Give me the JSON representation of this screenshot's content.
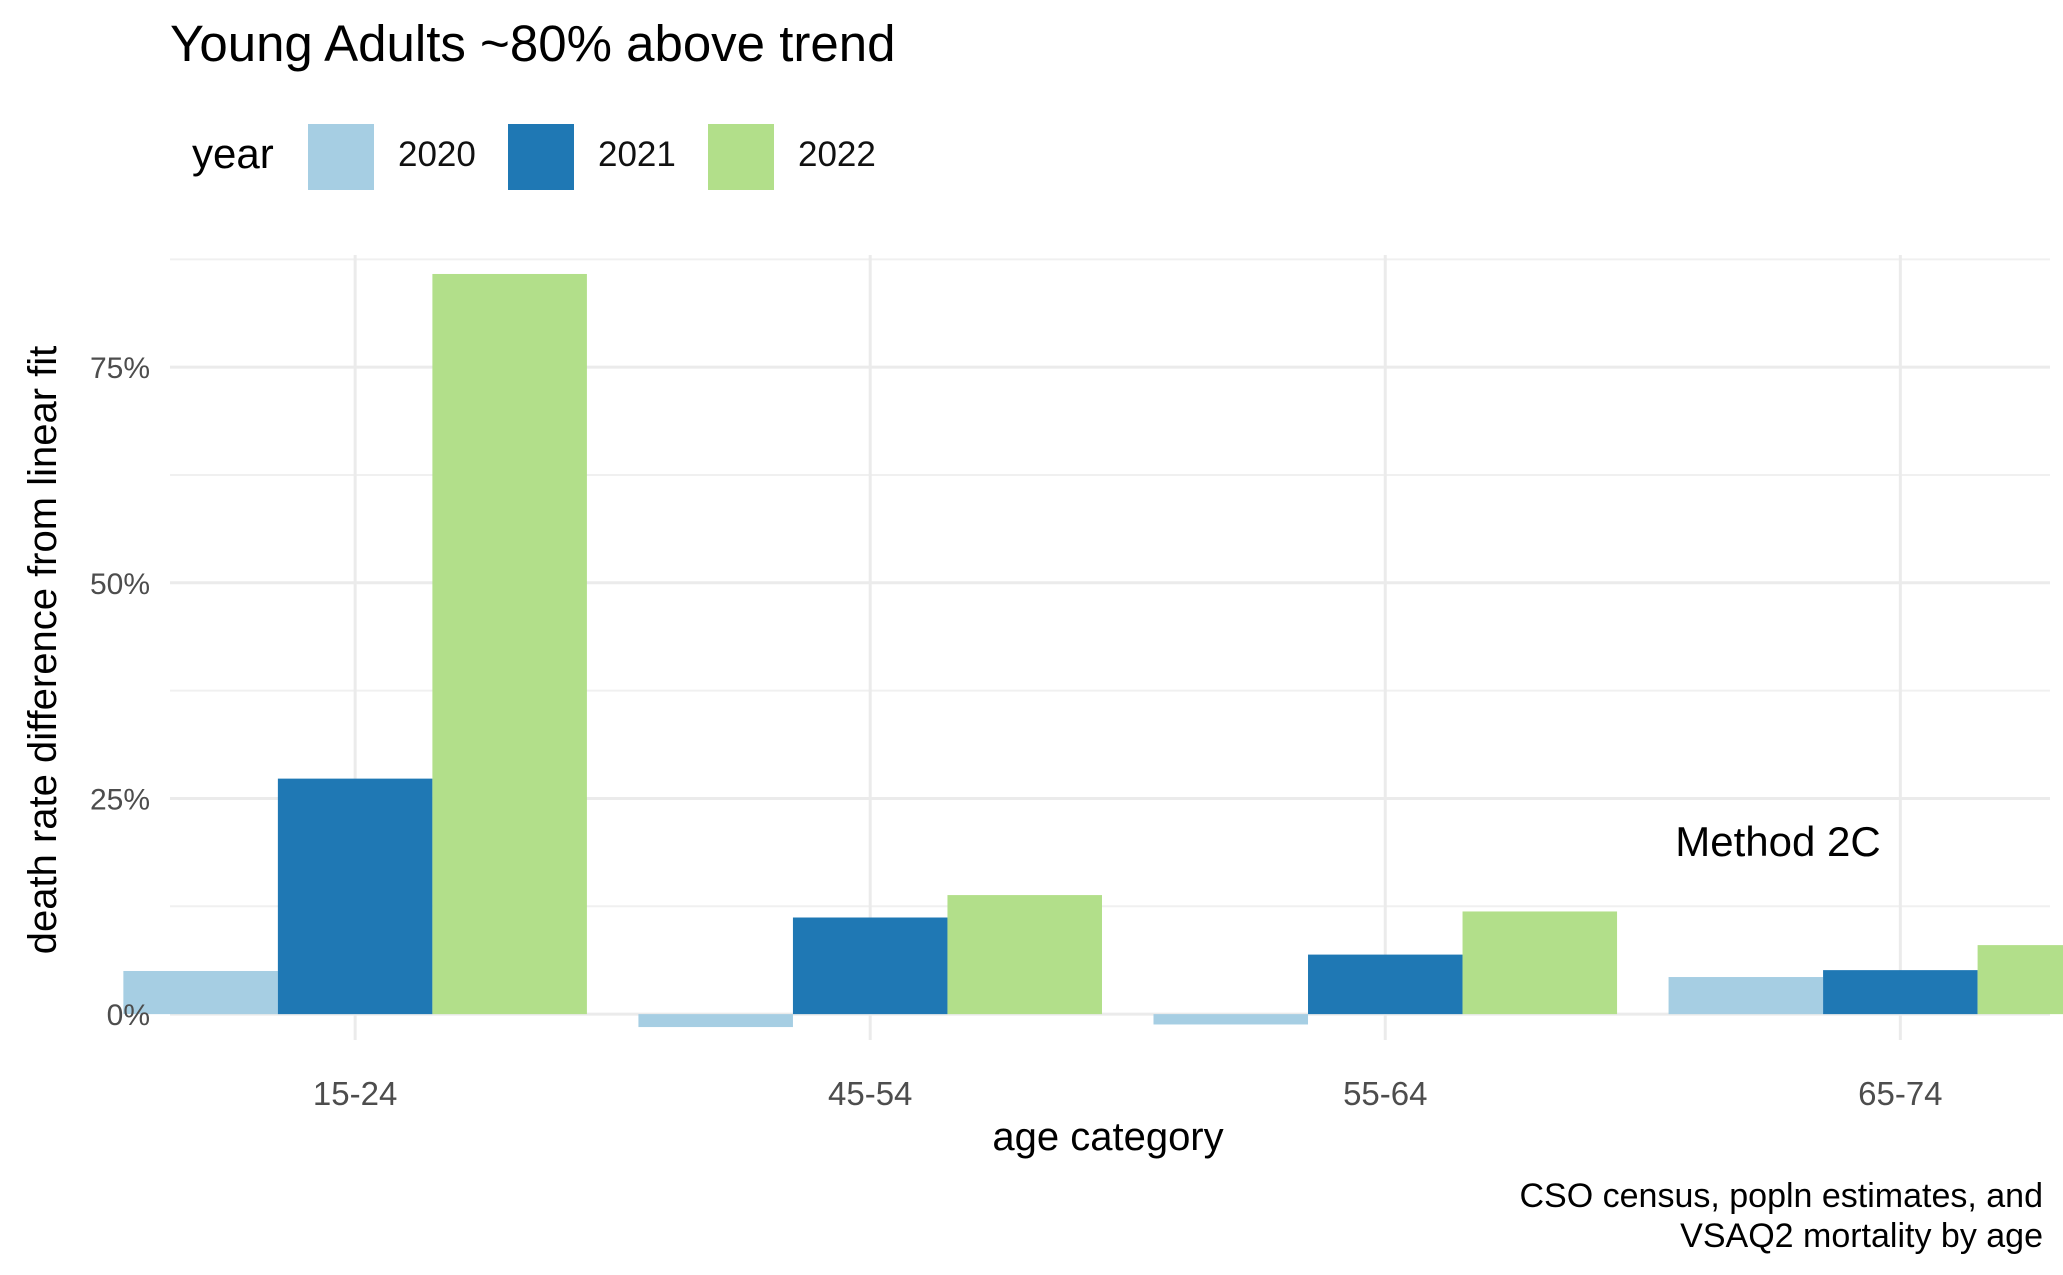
{
  "chart_data": {
    "type": "bar",
    "title": "Young Adults ~80% above trend",
    "xlabel": "age category",
    "ylabel": "death rate difference from linear fit",
    "categories": [
      "15-24",
      "45-54",
      "55-64",
      "65-74"
    ],
    "series": [
      {
        "name": "2020",
        "color": "#a6cee3",
        "values": [
          5,
          -1.5,
          -1.2,
          4.3
        ]
      },
      {
        "name": "2021",
        "color": "#1f78b4",
        "values": [
          27.3,
          11.2,
          6.9,
          5.1
        ]
      },
      {
        "name": "2022",
        "color": "#b2df8a",
        "values": [
          85.8,
          13.8,
          11.9,
          8
        ]
      }
    ],
    "ylim": [
      -3,
      88
    ],
    "yticks": [
      0,
      25,
      50,
      75
    ],
    "ytick_labels": [
      "0%",
      "25%",
      "50%",
      "75%"
    ],
    "grid": true,
    "legend": {
      "title": "year",
      "position": "top-left"
    },
    "annotation": "Method 2C",
    "caption": [
      "CSO census, popln estimates, and",
      "VSAQ2 mortality by age"
    ]
  }
}
